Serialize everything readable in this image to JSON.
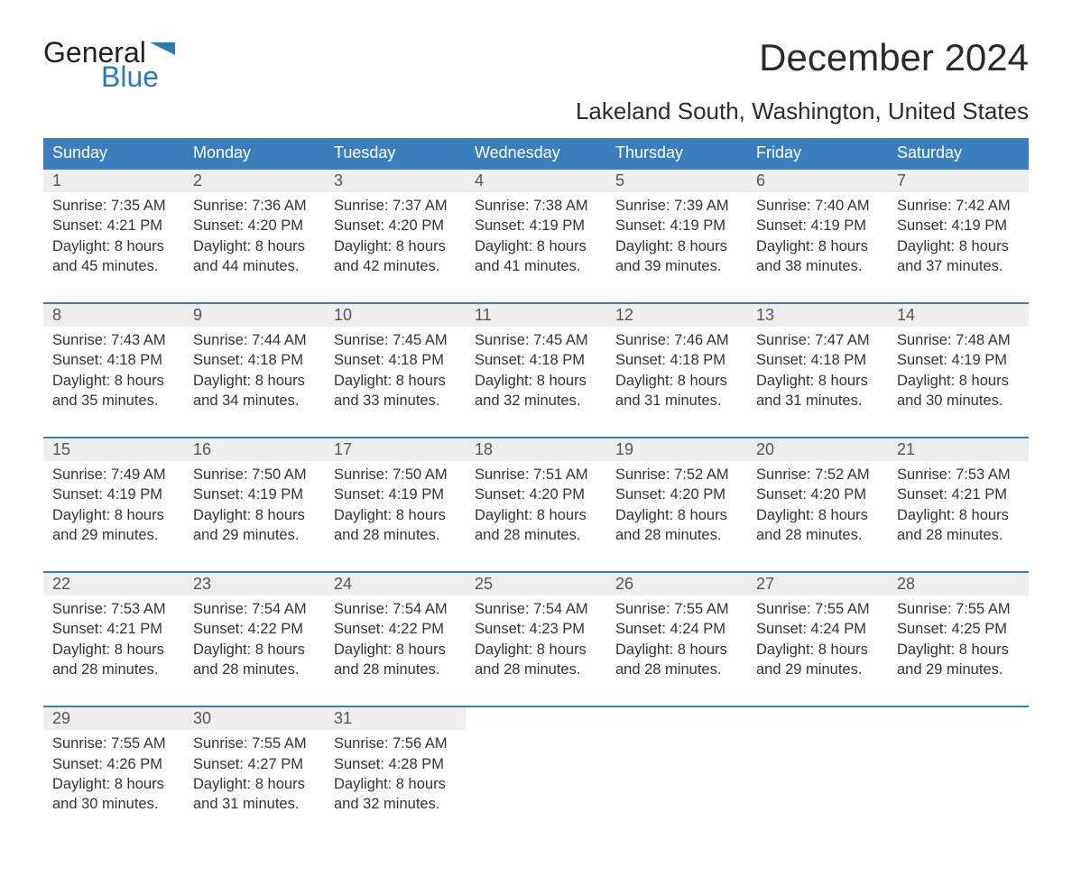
{
  "brand": {
    "word1": "General",
    "word2": "Blue"
  },
  "colors": {
    "brand_blue": "#2a7ab9",
    "header_blue": "#3a7ebd",
    "row_gray": "#eeeeee",
    "border_blue": "#3a7ebd"
  },
  "header": {
    "title": "December 2024",
    "subtitle": "Lakeland South, Washington, United States"
  },
  "dayNames": [
    "Sunday",
    "Monday",
    "Tuesday",
    "Wednesday",
    "Thursday",
    "Friday",
    "Saturday"
  ],
  "labels": {
    "sunrise": "Sunrise: ",
    "sunset": "Sunset: ",
    "daylight": "Daylight: "
  },
  "weeks": [
    [
      {
        "d": 1,
        "sunrise": "7:35 AM",
        "sunset": "4:21 PM",
        "daylight": "8 hours and 45 minutes."
      },
      {
        "d": 2,
        "sunrise": "7:36 AM",
        "sunset": "4:20 PM",
        "daylight": "8 hours and 44 minutes."
      },
      {
        "d": 3,
        "sunrise": "7:37 AM",
        "sunset": "4:20 PM",
        "daylight": "8 hours and 42 minutes."
      },
      {
        "d": 4,
        "sunrise": "7:38 AM",
        "sunset": "4:19 PM",
        "daylight": "8 hours and 41 minutes."
      },
      {
        "d": 5,
        "sunrise": "7:39 AM",
        "sunset": "4:19 PM",
        "daylight": "8 hours and 39 minutes."
      },
      {
        "d": 6,
        "sunrise": "7:40 AM",
        "sunset": "4:19 PM",
        "daylight": "8 hours and 38 minutes."
      },
      {
        "d": 7,
        "sunrise": "7:42 AM",
        "sunset": "4:19 PM",
        "daylight": "8 hours and 37 minutes."
      }
    ],
    [
      {
        "d": 8,
        "sunrise": "7:43 AM",
        "sunset": "4:18 PM",
        "daylight": "8 hours and 35 minutes."
      },
      {
        "d": 9,
        "sunrise": "7:44 AM",
        "sunset": "4:18 PM",
        "daylight": "8 hours and 34 minutes."
      },
      {
        "d": 10,
        "sunrise": "7:45 AM",
        "sunset": "4:18 PM",
        "daylight": "8 hours and 33 minutes."
      },
      {
        "d": 11,
        "sunrise": "7:45 AM",
        "sunset": "4:18 PM",
        "daylight": "8 hours and 32 minutes."
      },
      {
        "d": 12,
        "sunrise": "7:46 AM",
        "sunset": "4:18 PM",
        "daylight": "8 hours and 31 minutes."
      },
      {
        "d": 13,
        "sunrise": "7:47 AM",
        "sunset": "4:18 PM",
        "daylight": "8 hours and 31 minutes."
      },
      {
        "d": 14,
        "sunrise": "7:48 AM",
        "sunset": "4:19 PM",
        "daylight": "8 hours and 30 minutes."
      }
    ],
    [
      {
        "d": 15,
        "sunrise": "7:49 AM",
        "sunset": "4:19 PM",
        "daylight": "8 hours and 29 minutes."
      },
      {
        "d": 16,
        "sunrise": "7:50 AM",
        "sunset": "4:19 PM",
        "daylight": "8 hours and 29 minutes."
      },
      {
        "d": 17,
        "sunrise": "7:50 AM",
        "sunset": "4:19 PM",
        "daylight": "8 hours and 28 minutes."
      },
      {
        "d": 18,
        "sunrise": "7:51 AM",
        "sunset": "4:20 PM",
        "daylight": "8 hours and 28 minutes."
      },
      {
        "d": 19,
        "sunrise": "7:52 AM",
        "sunset": "4:20 PM",
        "daylight": "8 hours and 28 minutes."
      },
      {
        "d": 20,
        "sunrise": "7:52 AM",
        "sunset": "4:20 PM",
        "daylight": "8 hours and 28 minutes."
      },
      {
        "d": 21,
        "sunrise": "7:53 AM",
        "sunset": "4:21 PM",
        "daylight": "8 hours and 28 minutes."
      }
    ],
    [
      {
        "d": 22,
        "sunrise": "7:53 AM",
        "sunset": "4:21 PM",
        "daylight": "8 hours and 28 minutes."
      },
      {
        "d": 23,
        "sunrise": "7:54 AM",
        "sunset": "4:22 PM",
        "daylight": "8 hours and 28 minutes."
      },
      {
        "d": 24,
        "sunrise": "7:54 AM",
        "sunset": "4:22 PM",
        "daylight": "8 hours and 28 minutes."
      },
      {
        "d": 25,
        "sunrise": "7:54 AM",
        "sunset": "4:23 PM",
        "daylight": "8 hours and 28 minutes."
      },
      {
        "d": 26,
        "sunrise": "7:55 AM",
        "sunset": "4:24 PM",
        "daylight": "8 hours and 28 minutes."
      },
      {
        "d": 27,
        "sunrise": "7:55 AM",
        "sunset": "4:24 PM",
        "daylight": "8 hours and 29 minutes."
      },
      {
        "d": 28,
        "sunrise": "7:55 AM",
        "sunset": "4:25 PM",
        "daylight": "8 hours and 29 minutes."
      }
    ],
    [
      {
        "d": 29,
        "sunrise": "7:55 AM",
        "sunset": "4:26 PM",
        "daylight": "8 hours and 30 minutes."
      },
      {
        "d": 30,
        "sunrise": "7:55 AM",
        "sunset": "4:27 PM",
        "daylight": "8 hours and 31 minutes."
      },
      {
        "d": 31,
        "sunrise": "7:56 AM",
        "sunset": "4:28 PM",
        "daylight": "8 hours and 32 minutes."
      },
      null,
      null,
      null,
      null
    ]
  ]
}
